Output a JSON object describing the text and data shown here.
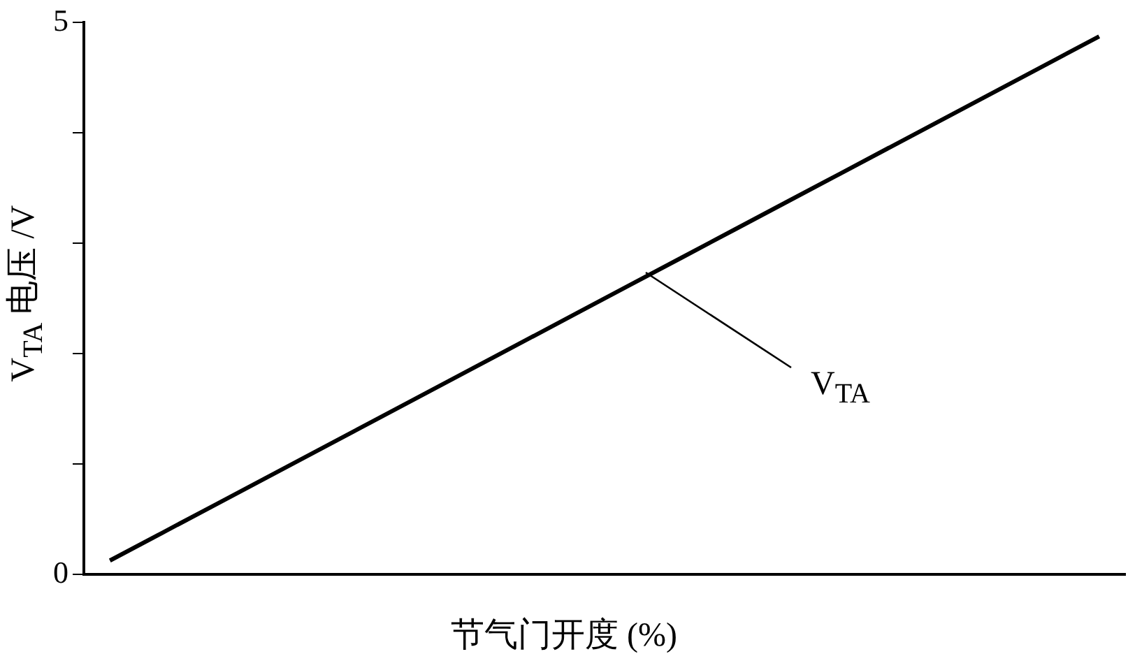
{
  "chart_data": {
    "type": "line",
    "xlabel": "节气门开度 (%)",
    "ylabel": "V$_{TA}$ 电压 /V",
    "categories": [
      null,
      null,
      null,
      null,
      null,
      null,
      null,
      null,
      null,
      null,
      null,
      null,
      null,
      null,
      null,
      null,
      null,
      null,
      null,
      null
    ],
    "series": [
      {
        "color": "#000000",
        "values": [
          0.125,
          0.375,
          0.625,
          0.875,
          1.125,
          1.375,
          1.625,
          1.875,
          2.125,
          2.375,
          2.625,
          2.875,
          3.125,
          3.375,
          3.625,
          3.875,
          4.125,
          4.375,
          4.625,
          4.875
        ]
      }
    ],
    "ylim": [
      0,
      5
    ],
    "yticks": [
      0,
      {
        "value": 1,
        "label": null
      },
      {
        "value": 2,
        "label": null
      },
      {
        "value": 3,
        "label": null
      },
      {
        "value": 4,
        "label": null
      },
      5
    ],
    "annotations": [
      "V$_{TA}$"
    ],
    "grid": false,
    "legend": false,
    "marker": "none",
    "line_style": "solid"
  }
}
